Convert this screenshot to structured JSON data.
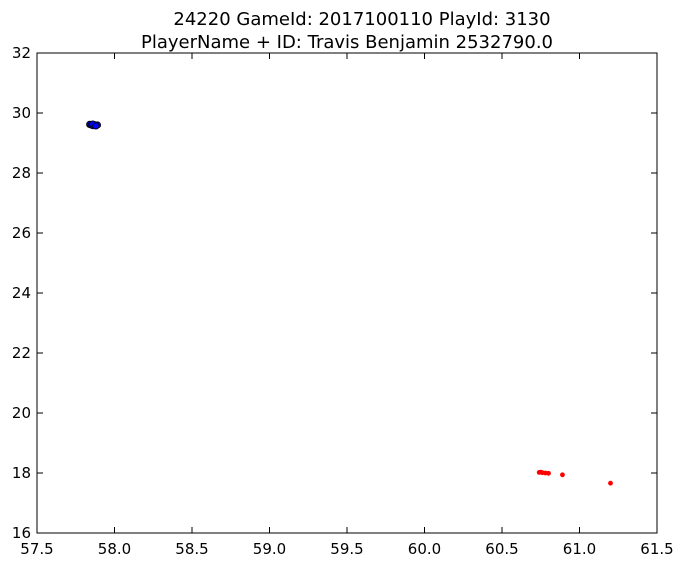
{
  "chart_data": {
    "type": "scatter",
    "title_line1": "24220 GameId: 2017100110 PlayId: 3130",
    "title_line2": "PlayerName + ID: Travis Benjamin 2532790.0",
    "xlabel": "",
    "ylabel": "",
    "xlim": [
      57.5,
      61.5
    ],
    "ylim": [
      16,
      32
    ],
    "xticks": [
      "57.5",
      "58.0",
      "58.5",
      "59.0",
      "59.5",
      "60.0",
      "60.5",
      "61.0",
      "61.5"
    ],
    "yticks": [
      "16",
      "18",
      "20",
      "22",
      "24",
      "26",
      "28",
      "30",
      "32"
    ],
    "grid": false,
    "series": [
      {
        "color": "#0000ff",
        "points": [
          [
            57.84,
            29.62
          ],
          [
            57.85,
            29.6
          ],
          [
            57.86,
            29.58
          ],
          [
            57.87,
            29.61
          ],
          [
            57.88,
            29.59
          ],
          [
            57.89,
            29.6
          ],
          [
            57.86,
            29.63
          ],
          [
            57.88,
            29.57
          ]
        ]
      },
      {
        "color": "#ff0000",
        "points": [
          [
            60.74,
            18.02
          ],
          [
            60.75,
            18.03
          ],
          [
            60.76,
            18.01
          ],
          [
            60.78,
            18.0
          ],
          [
            60.8,
            17.99
          ],
          [
            60.89,
            17.94
          ],
          [
            61.2,
            17.66
          ]
        ]
      }
    ]
  }
}
